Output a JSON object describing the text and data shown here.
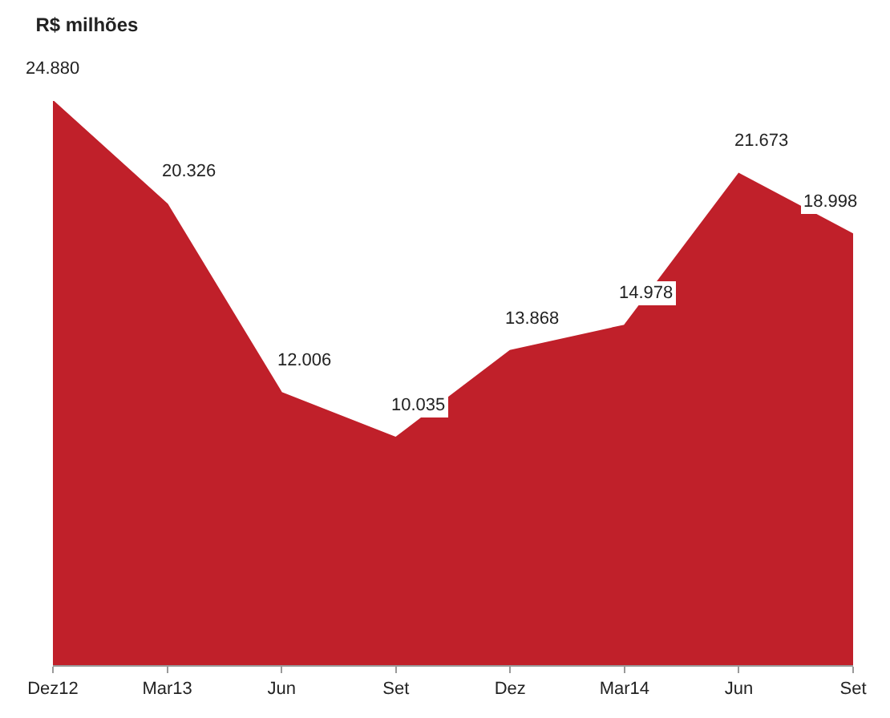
{
  "chart_data": {
    "type": "area",
    "title": "R$ milhões",
    "categories": [
      "Dez12",
      "Mar13",
      "Jun",
      "Set",
      "Dez",
      "Mar14",
      "Jun",
      "Set"
    ],
    "series": [
      {
        "color": "#c0202a",
        "values": [
          24880,
          20326,
          12006,
          10035,
          13868,
          14978,
          21673,
          18998
        ],
        "value_labels": [
          "24.880",
          "20.326",
          "12.006",
          "10.035",
          "13.868",
          "14.978",
          "21.673",
          "18.998"
        ]
      }
    ],
    "tick_labels": "x",
    "legend": false
  }
}
